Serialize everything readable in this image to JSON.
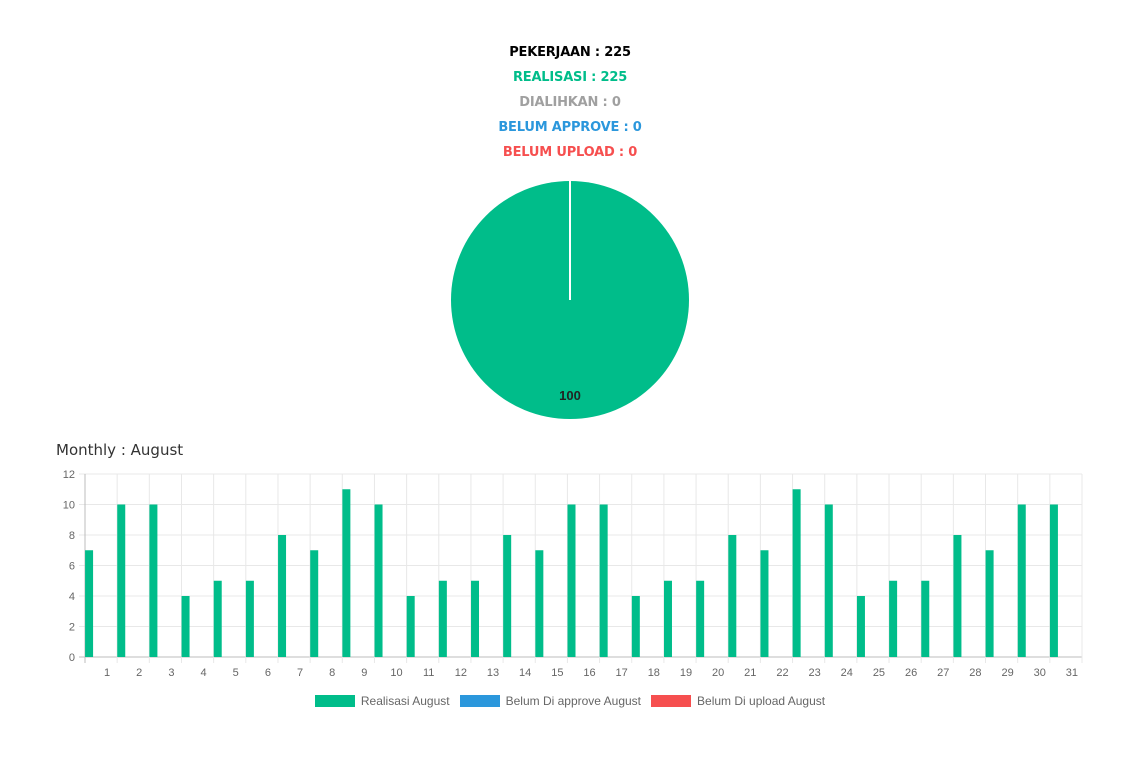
{
  "summary": {
    "pekerjaan": "PEKERJAAN : 225",
    "realisasi": "REALISASI : 225",
    "dialihkan": "DIALIHKAN : 0",
    "belum_approve": "BELUM APPROVE : 0",
    "belum_upload": "BELUM UPLOAD : 0"
  },
  "colors": {
    "pekerjaan": "#000000",
    "realisasi": "#00bd8a",
    "dialihkan": "#a0a0a0",
    "belum_approve": "#2b97dc",
    "belum_upload": "#f64f4f"
  },
  "monthly_title": "Monthly : August",
  "chart_data": [
    {
      "type": "pie",
      "values": [
        100
      ],
      "data_labels": [
        "100"
      ],
      "colors": [
        "#00bd8a"
      ]
    },
    {
      "type": "bar",
      "categories": [
        "1",
        "2",
        "3",
        "4",
        "5",
        "6",
        "7",
        "8",
        "9",
        "10",
        "11",
        "12",
        "13",
        "14",
        "15",
        "16",
        "17",
        "18",
        "19",
        "20",
        "21",
        "22",
        "23",
        "24",
        "25",
        "26",
        "27",
        "28",
        "29",
        "30",
        "31"
      ],
      "series": [
        {
          "name": "Realisasi August",
          "color": "#00bd8a",
          "values": [
            7,
            10,
            10,
            4,
            5,
            5,
            8,
            7,
            11,
            10,
            4,
            5,
            5,
            8,
            7,
            10,
            10,
            4,
            5,
            5,
            8,
            7,
            11,
            10,
            4,
            5,
            5,
            8,
            7,
            10,
            10
          ]
        },
        {
          "name": "Belum Di approve August",
          "color": "#2b97dc",
          "values": [
            0,
            0,
            0,
            0,
            0,
            0,
            0,
            0,
            0,
            0,
            0,
            0,
            0,
            0,
            0,
            0,
            0,
            0,
            0,
            0,
            0,
            0,
            0,
            0,
            0,
            0,
            0,
            0,
            0,
            0,
            0
          ]
        },
        {
          "name": "Belum Di upload August",
          "color": "#f64f4f",
          "values": [
            0,
            0,
            0,
            0,
            0,
            0,
            0,
            0,
            0,
            0,
            0,
            0,
            0,
            0,
            0,
            0,
            0,
            0,
            0,
            0,
            0,
            0,
            0,
            0,
            0,
            0,
            0,
            0,
            0,
            0,
            0
          ]
        }
      ],
      "ylim": [
        0,
        12
      ],
      "yticks": [
        0,
        2,
        4,
        6,
        8,
        10,
        12
      ],
      "grid": true,
      "legend": "bottom"
    }
  ]
}
